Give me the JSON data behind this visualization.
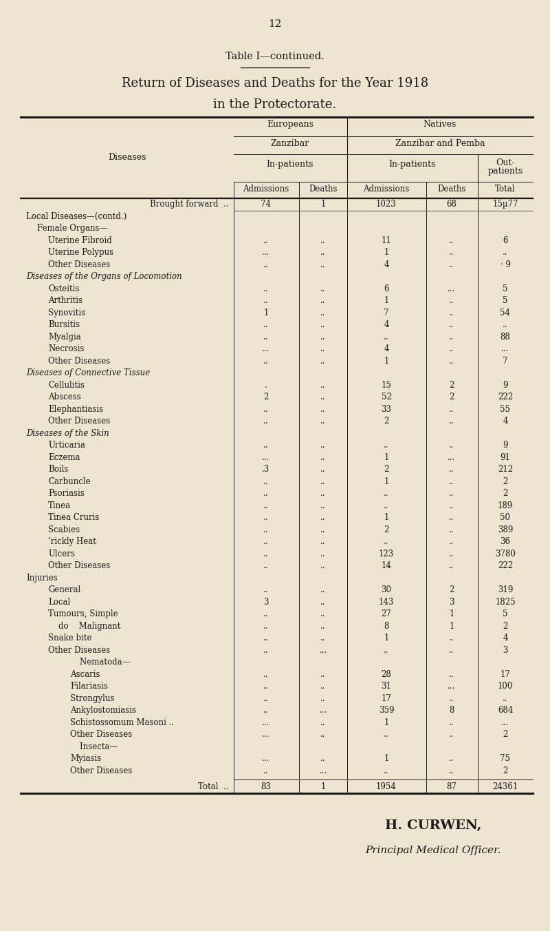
{
  "page_number": "12",
  "title_line1": "Table I—continued.",
  "title_line2": "Return of Diseases and Deaths for the Year 1918",
  "title_line3": "in the Protectorate.",
  "bg_color": "#ede5d0",
  "text_color": "#1a1a1a",
  "brought_forward": [
    "Brought forward  ..",
    "74",
    "1",
    "1023",
    "68",
    "15µ77"
  ],
  "rows": [
    {
      "label": "Local Diseases—(contd.)",
      "indent": 0,
      "italic": false,
      "section": true,
      "smallcaps": true,
      "cols": [
        "",
        "",
        "",
        "",
        ""
      ]
    },
    {
      "label": "Female Organs—",
      "indent": 1,
      "italic": false,
      "section": true,
      "smallcaps": false,
      "cols": [
        "",
        "",
        "",
        "",
        ""
      ]
    },
    {
      "label": "Uterine Fibroid",
      "indent": 2,
      "italic": false,
      "section": false,
      "smallcaps": false,
      "cols": [
        "..",
        "..",
        "11",
        "..",
        "6"
      ]
    },
    {
      "label": "Uterine Polypus",
      "indent": 2,
      "italic": false,
      "section": false,
      "smallcaps": false,
      "cols": [
        "...",
        "..",
        "1",
        "..",
        ".."
      ]
    },
    {
      "label": "Other Diseases",
      "indent": 2,
      "italic": false,
      "section": false,
      "smallcaps": false,
      "cols": [
        "..",
        "..",
        "4",
        "..",
        "· 9"
      ]
    },
    {
      "label": "Diseases of the Organs of Locomotion",
      "indent": 0,
      "italic": true,
      "section": true,
      "smallcaps": false,
      "cols": [
        "",
        "",
        "",
        "",
        ""
      ]
    },
    {
      "label": "Osteitis",
      "indent": 2,
      "italic": false,
      "section": false,
      "smallcaps": false,
      "cols": [
        "..",
        "..",
        "6",
        "...",
        "5"
      ]
    },
    {
      "label": "Arthritis",
      "indent": 2,
      "italic": false,
      "section": false,
      "smallcaps": false,
      "cols": [
        "..",
        "..",
        "1",
        "..",
        "5"
      ]
    },
    {
      "label": "Synovitis",
      "indent": 2,
      "italic": false,
      "section": false,
      "smallcaps": false,
      "cols": [
        "1",
        "..",
        "7",
        "..",
        "54"
      ]
    },
    {
      "label": "Bursitis",
      "indent": 2,
      "italic": false,
      "section": false,
      "smallcaps": false,
      "cols": [
        "..",
        "..",
        "4",
        "..",
        ".."
      ]
    },
    {
      "label": "Myalgia",
      "indent": 2,
      "italic": false,
      "section": false,
      "smallcaps": false,
      "cols": [
        "..",
        "..",
        "..",
        "..",
        "88"
      ]
    },
    {
      "label": "Necrosis",
      "indent": 2,
      "italic": false,
      "section": false,
      "smallcaps": false,
      "cols": [
        "...",
        "..",
        "4",
        "..",
        "..."
      ]
    },
    {
      "label": "Other Diseases",
      "indent": 2,
      "italic": false,
      "section": false,
      "smallcaps": false,
      "cols": [
        "..",
        "..",
        "1",
        "..",
        "7"
      ]
    },
    {
      "label": "Diseases of Connective Tissue",
      "indent": 0,
      "italic": true,
      "section": true,
      "smallcaps": false,
      "cols": [
        "",
        "",
        "",
        "",
        ""
      ]
    },
    {
      "label": "Cellulitis",
      "indent": 2,
      "italic": false,
      "section": false,
      "smallcaps": false,
      "cols": [
        ".",
        "..",
        "15",
        "2",
        "9"
      ]
    },
    {
      "label": "Abscess",
      "indent": 2,
      "italic": false,
      "section": false,
      "smallcaps": false,
      "cols": [
        "2",
        "..",
        "52",
        "2",
        "222"
      ]
    },
    {
      "label": "Elephantiasis",
      "indent": 2,
      "italic": false,
      "section": false,
      "smallcaps": false,
      "cols": [
        "..",
        "..",
        "33",
        "..",
        "55"
      ]
    },
    {
      "label": "Other Diseases",
      "indent": 2,
      "italic": false,
      "section": false,
      "smallcaps": false,
      "cols": [
        "..",
        "..",
        "2",
        "..",
        "4"
      ]
    },
    {
      "label": "Diseases of the Skin",
      "indent": 0,
      "italic": true,
      "section": true,
      "smallcaps": false,
      "cols": [
        "",
        "",
        "",
        "",
        ""
      ]
    },
    {
      "label": "Urticaria",
      "indent": 2,
      "italic": false,
      "section": false,
      "smallcaps": false,
      "cols": [
        "..",
        "..",
        "..",
        "..",
        "9"
      ]
    },
    {
      "label": "Eczema",
      "indent": 2,
      "italic": false,
      "section": false,
      "smallcaps": false,
      "cols": [
        "...",
        "..",
        "1",
        "...",
        "91"
      ]
    },
    {
      "label": "Boils",
      "indent": 2,
      "italic": false,
      "section": false,
      "smallcaps": false,
      "cols": [
        ".3",
        "..",
        "2",
        "..",
        "212"
      ]
    },
    {
      "label": "Carbuncle",
      "indent": 2,
      "italic": false,
      "section": false,
      "smallcaps": false,
      "cols": [
        "..",
        "..",
        "1",
        "..",
        "2"
      ]
    },
    {
      "label": "Psoriasis",
      "indent": 2,
      "italic": false,
      "section": false,
      "smallcaps": false,
      "cols": [
        "..",
        "..",
        "..",
        "..",
        "2"
      ]
    },
    {
      "label": "Tinea",
      "indent": 2,
      "italic": false,
      "section": false,
      "smallcaps": false,
      "cols": [
        "..",
        "..",
        "..",
        "..",
        "189"
      ]
    },
    {
      "label": "Tinea Cruris",
      "indent": 2,
      "italic": false,
      "section": false,
      "smallcaps": false,
      "cols": [
        "..",
        "..",
        "1",
        "..",
        "50"
      ]
    },
    {
      "label": "Scabies",
      "indent": 2,
      "italic": false,
      "section": false,
      "smallcaps": false,
      "cols": [
        "..",
        "..",
        "2",
        "..",
        "389"
      ]
    },
    {
      "label": "’rickly Heat",
      "indent": 2,
      "italic": false,
      "section": false,
      "smallcaps": false,
      "cols": [
        "..",
        "..",
        "..",
        "..",
        "36"
      ]
    },
    {
      "label": "Ulcers",
      "indent": 2,
      "italic": false,
      "section": false,
      "smallcaps": false,
      "cols": [
        "..",
        "..",
        "123",
        "..",
        "3780"
      ]
    },
    {
      "label": "Other Diseases",
      "indent": 2,
      "italic": false,
      "section": false,
      "smallcaps": false,
      "cols": [
        "..",
        "..",
        "14",
        "..",
        "222"
      ]
    },
    {
      "label": "Injuries",
      "indent": 0,
      "italic": false,
      "section": true,
      "smallcaps": true,
      "cols": [
        "",
        "",
        "",
        "",
        ""
      ]
    },
    {
      "label": "General",
      "indent": 2,
      "italic": false,
      "section": false,
      "smallcaps": false,
      "cols": [
        "..",
        "..",
        "30",
        "2",
        "319"
      ]
    },
    {
      "label": "Local",
      "indent": 2,
      "italic": false,
      "section": false,
      "smallcaps": false,
      "cols": [
        "3",
        "..",
        "143",
        "3",
        "1825"
      ]
    },
    {
      "label": "Tumours, Simple",
      "indent": 2,
      "italic": false,
      "section": false,
      "smallcaps": false,
      "cols": [
        "..",
        "..",
        "27",
        "1",
        "5"
      ]
    },
    {
      "label": "    do    Malignant",
      "indent": 2,
      "italic": false,
      "section": false,
      "smallcaps": false,
      "cols": [
        "..",
        "..",
        "8",
        "1",
        "2"
      ]
    },
    {
      "label": "Snake bite",
      "indent": 2,
      "italic": false,
      "section": false,
      "smallcaps": false,
      "cols": [
        "..",
        "..",
        "1",
        "..",
        "4"
      ]
    },
    {
      "label": "Other Diseases",
      "indent": 2,
      "italic": false,
      "section": false,
      "smallcaps": false,
      "cols": [
        "..",
        "...",
        "..",
        "..",
        "3"
      ]
    },
    {
      "label": "        Nematoda—",
      "indent": 3,
      "italic": false,
      "section": true,
      "smallcaps": false,
      "cols": [
        "",
        "",
        "",
        "",
        ""
      ]
    },
    {
      "label": "Ascaris",
      "indent": 4,
      "italic": false,
      "section": false,
      "smallcaps": false,
      "cols": [
        "..",
        "..",
        "28",
        "..",
        "17"
      ]
    },
    {
      "label": "Filariasis",
      "indent": 4,
      "italic": false,
      "section": false,
      "smallcaps": false,
      "cols": [
        "..",
        "..",
        "31",
        "...",
        "100"
      ]
    },
    {
      "label": "Strongylus",
      "indent": 4,
      "italic": false,
      "section": false,
      "smallcaps": false,
      "cols": [
        "..",
        "..",
        "17",
        "..",
        ".."
      ]
    },
    {
      "label": "Ankylostomiasis",
      "indent": 4,
      "italic": false,
      "section": false,
      "smallcaps": false,
      "cols": [
        "..",
        "...",
        "359",
        "8",
        "684"
      ]
    },
    {
      "label": "Schistossomum Masoni ..",
      "indent": 4,
      "italic": false,
      "section": false,
      "smallcaps": false,
      "cols": [
        "...",
        "..",
        "1",
        "..",
        "..."
      ]
    },
    {
      "label": "Other Diseases",
      "indent": 4,
      "italic": false,
      "section": false,
      "smallcaps": false,
      "cols": [
        "...",
        "..",
        "..",
        "..",
        "2"
      ]
    },
    {
      "label": "        Insecta—",
      "indent": 3,
      "italic": false,
      "section": true,
      "smallcaps": false,
      "cols": [
        "",
        "",
        "",
        "",
        ""
      ]
    },
    {
      "label": "Myiasis",
      "indent": 4,
      "italic": false,
      "section": false,
      "smallcaps": false,
      "cols": [
        "...",
        "..",
        "1",
        "..",
        "75"
      ]
    },
    {
      "label": "Other Diseases",
      "indent": 4,
      "italic": false,
      "section": false,
      "smallcaps": false,
      "cols": [
        "..",
        "...",
        "..",
        "..",
        "2"
      ]
    }
  ],
  "total_row": [
    "Total  ..",
    "83",
    "1",
    "1954",
    "87",
    "24361"
  ],
  "signature_line1": "H. CURWEN,",
  "signature_line2": "Principal Medical Officer."
}
